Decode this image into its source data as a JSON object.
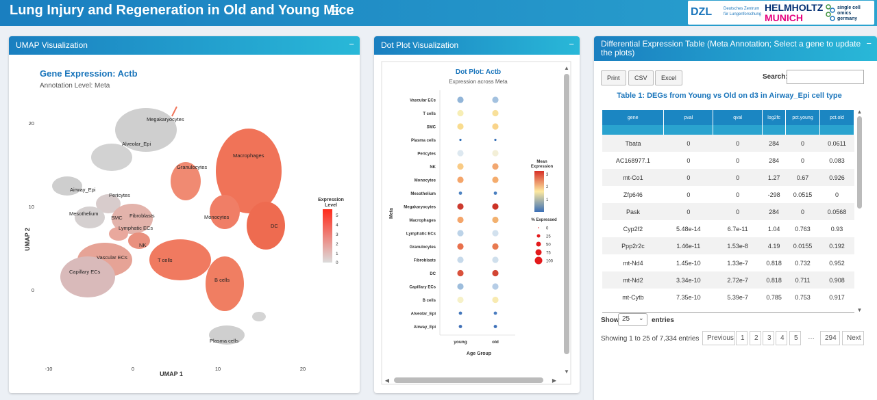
{
  "header": {
    "title": "Lung Injury and Regeneration in Old and Young Mice",
    "menu_icon": "hamburger-icon",
    "logos": {
      "dzl": "DZL",
      "dzl_sub": "Deutsches Zentrum für Lungenforschung",
      "helmholtz": "HELMHOLTZ",
      "munich": "MUNICH",
      "sco_line1": "single cell omics",
      "sco_line2": "germany"
    }
  },
  "umap": {
    "box_title": "UMAP Visualization",
    "collapse_icon": "minus-icon",
    "plot_title": "Gene Expression: Actb",
    "subtitle": "Annotation Level: Meta",
    "xlabel": "UMAP 1",
    "ylabel": "UMAP 2",
    "xticks": [
      "-10",
      "0",
      "10",
      "20"
    ],
    "yticks": [
      "20",
      "10",
      "0"
    ],
    "legend_title_1": "Expression",
    "legend_title_2": "Level",
    "legend_ticks": [
      "5",
      "4",
      "3",
      "2",
      "1",
      "0"
    ],
    "cluster_labels": [
      "Megakaryocytes",
      "Alveolar_Epi",
      "Granulocytes",
      "Macrophages",
      "Airway_Epi",
      "Pericytes",
      "Mesothelium",
      "SMC",
      "Fibroblasts",
      "Lymphatic ECs",
      "Monocytes",
      "DC",
      "NK",
      "Vascular ECs",
      "T cells",
      "Capillary ECs",
      "B cells",
      "Plasma cells"
    ]
  },
  "dotplot": {
    "box_title": "Dot Plot Visualization",
    "collapse_icon": "minus-icon",
    "plot_title": "Dot Plot: Actb",
    "subtitle": "Expression across Meta",
    "xlabel": "Age Group",
    "ylabel": "Meta",
    "xcats": [
      "young",
      "old"
    ],
    "ycats": [
      "Vascular ECs",
      "T cells",
      "SMC",
      "Plasma cells",
      "Pericytes",
      "NK",
      "Monocytes",
      "Mesothelium",
      "Megakaryocytes",
      "Macrophages",
      "Lymphatic ECs",
      "Granulocytes",
      "Fibroblasts",
      "DC",
      "Capillary ECs",
      "B cells",
      "Alveolar_Epi",
      "Airway_Epi"
    ],
    "colors_young": [
      "#92b5d8",
      "#f7eeb5",
      "#f9dc8f",
      "#2f6fb5",
      "#dde8f0",
      "#f9cb85",
      "#f4a56a",
      "#4f84c2",
      "#cc3a2f",
      "#f4a56a",
      "#bcd3e8",
      "#e8704c",
      "#c6d9ea",
      "#d9513c",
      "#9dbddc",
      "#f6f1c8",
      "#4477bb",
      "#3f6fb6"
    ],
    "colors_old": [
      "#a3c1df",
      "#f8e09a",
      "#f9d48a",
      "#3670b5",
      "#f3efd7",
      "#f2a770",
      "#f4ac6d",
      "#4a7fc0",
      "#cc3326",
      "#f2b16f",
      "#d2e1ee",
      "#e87a50",
      "#cfdfec",
      "#d24533",
      "#b6cde6",
      "#f8eab1",
      "#4a7cbf",
      "#3e70b8"
    ],
    "legend_mean_1": "Mean",
    "legend_mean_2": "Expression",
    "legend_mean_ticks": [
      "3",
      "2",
      "1"
    ],
    "legend_pct_title": "% Expressed",
    "legend_pct_ticks": [
      "0",
      "25",
      "50",
      "75",
      "100"
    ]
  },
  "deg": {
    "box_title": "Differential Expression Table (Meta Annotation; Select a gene to update the plots)",
    "collapse_icon": "minus-icon",
    "buttons": [
      "Print",
      "CSV",
      "Excel"
    ],
    "search_label": "Search:",
    "search_value": "",
    "caption": "Table 1: DEGs from Young vs Old on d3 in Airway_Epi cell type",
    "columns": [
      "gene",
      "pval",
      "qval",
      "log2fc",
      "pct.young",
      "pct.old"
    ],
    "rows": [
      [
        "Tbata",
        "0",
        "0",
        "284",
        "0",
        "0.0611"
      ],
      [
        "AC168977.1",
        "0",
        "0",
        "284",
        "0",
        "0.083"
      ],
      [
        "mt-Co1",
        "0",
        "0",
        "1.27",
        "0.67",
        "0.926"
      ],
      [
        "Zfp646",
        "0",
        "0",
        "-298",
        "0.0515",
        "0"
      ],
      [
        "Pask",
        "0",
        "0",
        "284",
        "0",
        "0.0568"
      ],
      [
        "Cyp2f2",
        "5.48e-14",
        "6.7e-11",
        "1.04",
        "0.763",
        "0.93"
      ],
      [
        "Ppp2r2c",
        "1.46e-11",
        "1.53e-8",
        "4.19",
        "0.0155",
        "0.192"
      ],
      [
        "mt-Nd4",
        "1.45e-10",
        "1.33e-7",
        "0.818",
        "0.732",
        "0.952"
      ],
      [
        "mt-Nd2",
        "3.34e-10",
        "2.72e-7",
        "0.818",
        "0.711",
        "0.908"
      ],
      [
        "mt-Cytb",
        "7.35e-10",
        "5.39e-7",
        "0.785",
        "0.753",
        "0.917"
      ]
    ],
    "show_label": "Show",
    "page_length": "25",
    "entries_label": "entries",
    "info": "Showing 1 to 25 of 7,334 entries",
    "pagination": [
      "Previous",
      "1",
      "2",
      "3",
      "4",
      "5",
      "…",
      "294",
      "Next"
    ]
  }
}
